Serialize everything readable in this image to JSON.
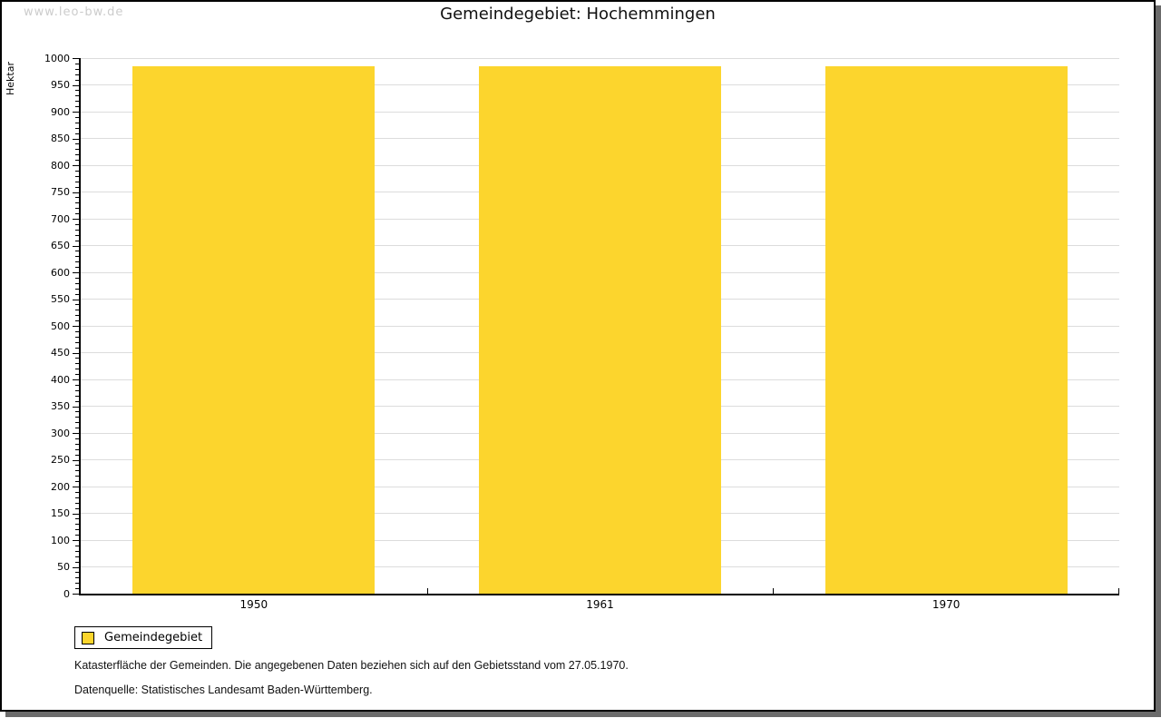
{
  "watermark": "www.leo-bw.de",
  "legend": {
    "label": "Gemeindegebiet"
  },
  "footnotes": [
    "Katasterfläche der Gemeinden. Die angegebenen Daten beziehen sich auf den Gebietsstand vom 27.05.1970.",
    "Datenquelle: Statistisches Landesamt Baden-Württemberg."
  ],
  "colors": {
    "bar": "#fcd52d",
    "grid": "#dcdcdc",
    "axis": "#000000",
    "watermark": "#cccccc",
    "frame_shadow": "#6b6b6b"
  },
  "chart_data": {
    "type": "bar",
    "title": "Gemeindegebiet: Hochemmingen",
    "ylabel": "Hektar",
    "xlabel": "",
    "categories": [
      "1950",
      "1961",
      "1970"
    ],
    "series": [
      {
        "name": "Gemeindegebiet",
        "values": [
          985,
          985,
          985
        ]
      }
    ],
    "ylim": [
      0,
      1000
    ],
    "y_major_step": 50,
    "y_minor_step": 10,
    "grid": true,
    "legend_position": "bottom-left"
  }
}
